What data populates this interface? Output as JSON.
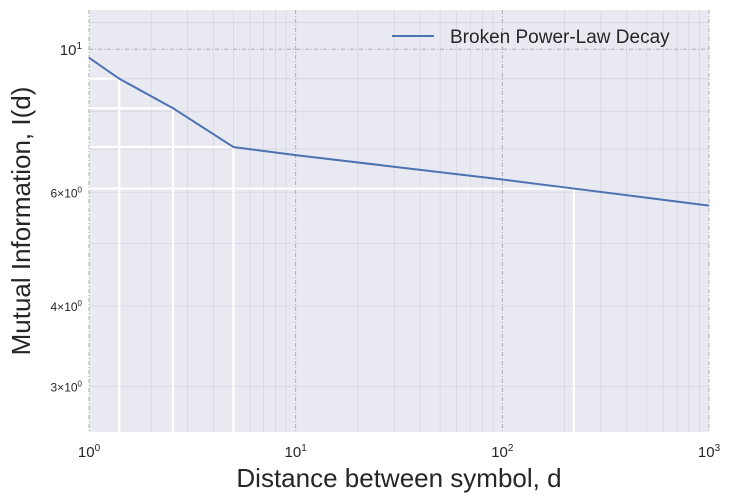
{
  "chart_data": {
    "type": "line",
    "xscale": "log",
    "yscale": "log",
    "xlim": [
      1,
      1000
    ],
    "ylim": [
      2.55,
      11.5
    ],
    "xlabel": "Distance between symbol, d",
    "ylabel": "Mutual Information, I(d)",
    "grid": true,
    "legend": {
      "position": "top-right",
      "entries": [
        "Broken Power-Law Decay"
      ]
    },
    "colors": {
      "line": "#4c72b0",
      "plot_bg": "#e9e9f2",
      "major_grid": "#a6a6a6",
      "minor_grid": "#d6d6e0",
      "highlight_grid": "#ffffff"
    },
    "x_ticks": [
      {
        "value": 1,
        "base": "10",
        "exp": "0"
      },
      {
        "value": 10,
        "base": "10",
        "exp": "1"
      },
      {
        "value": 100,
        "base": "10",
        "exp": "2"
      },
      {
        "value": 1000,
        "base": "10",
        "exp": "3"
      }
    ],
    "y_ticks": [
      {
        "value": 10,
        "mant": "",
        "base": "10",
        "exp": "1"
      },
      {
        "value": 6,
        "mant": "6×",
        "base": "10",
        "exp": "0"
      },
      {
        "value": 4,
        "mant": "4×",
        "base": "10",
        "exp": "0"
      },
      {
        "value": 3,
        "mant": "3×",
        "base": "10",
        "exp": "0"
      }
    ],
    "series": [
      {
        "name": "Broken Power-Law Decay",
        "x": [
          1,
          1.4,
          2.55,
          5,
          10,
          100,
          222,
          1000
        ],
        "y": [
          9.7,
          9.0,
          8.1,
          7.05,
          6.85,
          6.28,
          6.08,
          5.72
        ]
      }
    ],
    "highlight_lines": {
      "horizontal": [
        {
          "y": 9.0,
          "x_end": 1.4
        },
        {
          "y": 8.1,
          "x_end": 2.55
        },
        {
          "y": 7.05,
          "x_end": 5
        },
        {
          "y": 6.08,
          "x_end": 222
        }
      ],
      "vertical": [
        {
          "x": 1.4,
          "y_end": 9.0
        },
        {
          "x": 2.55,
          "y_end": 8.1
        },
        {
          "x": 5,
          "y_end": 7.05
        },
        {
          "x": 222,
          "y_end": 6.08
        }
      ]
    }
  }
}
